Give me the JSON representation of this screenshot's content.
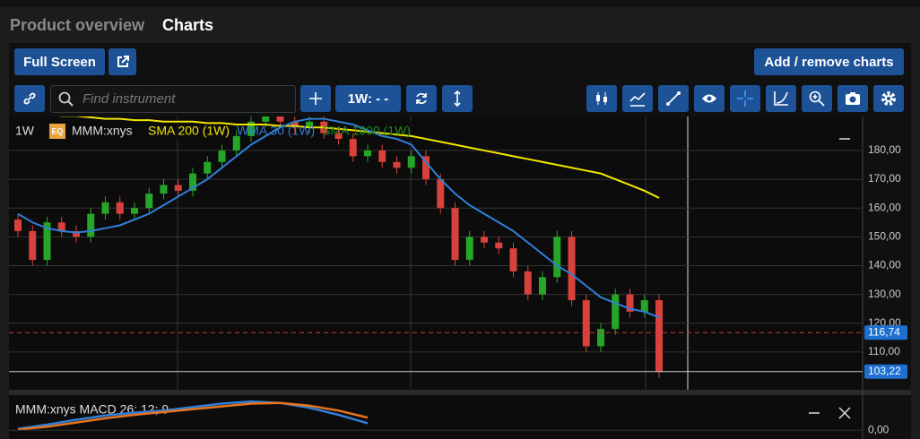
{
  "tabs": [
    "Product overview",
    "Charts"
  ],
  "toolbar": {
    "full_screen": "Full Screen",
    "add_remove": "Add / remove charts",
    "search_placeholder": "Find instrument",
    "interval": "1W: - -"
  },
  "chart_data": {
    "type": "candlestick",
    "interval": "1W",
    "badge": "EQ",
    "symbol": "MMM:xnys",
    "up_color": "#26a626",
    "down_color": "#d9413c",
    "open": [
      156,
      152,
      142,
      155,
      152,
      150,
      158,
      162,
      158,
      160,
      165,
      168,
      166,
      172,
      176,
      180,
      185,
      190,
      192,
      190,
      188,
      190,
      186,
      184,
      178,
      180,
      176,
      174,
      178,
      170,
      160,
      142,
      150,
      148,
      146,
      138,
      130,
      136,
      150,
      128,
      112,
      118,
      130,
      124,
      128
    ],
    "high": [
      158,
      154,
      157,
      157,
      154,
      160,
      164,
      164,
      162,
      167,
      170,
      170,
      174,
      178,
      182,
      187,
      192,
      194,
      194,
      192,
      192,
      192,
      188,
      186,
      182,
      182,
      178,
      180,
      180,
      172,
      162,
      152,
      152,
      150,
      148,
      140,
      138,
      152,
      152,
      130,
      120,
      132,
      132,
      130,
      130
    ],
    "low": [
      150,
      140,
      140,
      150,
      148,
      148,
      156,
      156,
      156,
      158,
      163,
      164,
      164,
      170,
      174,
      178,
      183,
      188,
      188,
      186,
      186,
      184,
      182,
      176,
      176,
      174,
      172,
      172,
      168,
      158,
      140,
      140,
      146,
      144,
      136,
      128,
      128,
      134,
      126,
      110,
      110,
      116,
      122,
      122,
      101
    ],
    "close": [
      152,
      142,
      155,
      152,
      150,
      158,
      162,
      158,
      160,
      165,
      168,
      166,
      172,
      176,
      180,
      185,
      190,
      192,
      190,
      188,
      190,
      186,
      184,
      178,
      180,
      176,
      174,
      178,
      170,
      160,
      142,
      150,
      148,
      146,
      138,
      130,
      136,
      150,
      128,
      112,
      118,
      130,
      124,
      128,
      103.22
    ],
    "overlays": [
      {
        "name": "SMA 200 (1W)",
        "color": "#f2e600",
        "values": [
          193,
          193,
          192.5,
          192,
          192,
          191.5,
          191,
          191,
          190.5,
          190.5,
          190,
          190,
          190,
          189.5,
          189.5,
          189,
          189,
          189,
          188.5,
          188.5,
          188,
          188,
          187.5,
          187,
          186.5,
          186,
          185.5,
          185,
          184,
          183,
          182,
          181,
          180,
          179,
          178,
          177,
          176,
          175,
          174,
          173,
          172,
          170,
          168,
          166,
          163.5
        ]
      },
      {
        "name": "WMA 30 (1W)",
        "color": "#2f7fd8",
        "values": [
          158,
          155,
          153,
          152,
          151.5,
          152,
          153,
          154,
          156,
          158,
          161,
          164,
          167,
          170,
          174,
          178,
          182,
          185,
          188,
          190,
          191,
          191,
          190,
          189,
          187,
          185,
          184,
          182,
          176,
          170,
          165,
          161,
          158,
          155,
          152,
          148,
          144,
          140,
          137,
          133,
          129,
          127,
          125,
          124,
          122
        ]
      },
      {
        "name": "SMA 1000 (1W)",
        "color": "#1e8c1e"
      }
    ],
    "ylim": [
      96.9,
      191.8
    ],
    "yticks": [
      {
        "value": 110,
        "label": "110,00"
      },
      {
        "value": 120,
        "label": "120,00"
      },
      {
        "value": 130,
        "label": "130,00"
      },
      {
        "value": 140,
        "label": "140,00"
      },
      {
        "value": 150,
        "label": "150,00"
      },
      {
        "value": 160,
        "label": "160,00"
      },
      {
        "value": 170,
        "label": "170,00"
      },
      {
        "value": 180,
        "label": "180,00"
      }
    ],
    "grid": true,
    "last_price": {
      "value": 116.74,
      "label": "116,74"
    },
    "current_price": {
      "value": 103.22,
      "label": "103,22"
    },
    "macd": {
      "title": "MMM:xnys MACD 26; 12; 9",
      "ylim": [
        -1.25,
        4.5
      ],
      "yticks": [
        {
          "value": 0,
          "label": "0,00"
        }
      ],
      "x": [
        0,
        2,
        4,
        6,
        8,
        10,
        12,
        14,
        16,
        18,
        20,
        22,
        24
      ],
      "series": [
        {
          "color": "#2f7fd8",
          "values": [
            0.2,
            0.8,
            1.5,
            2.1,
            2.5,
            2.8,
            3.3,
            3.8,
            4.1,
            3.9,
            3.2,
            2.2,
            1.0
          ]
        },
        {
          "color": "#e8731e",
          "values": [
            0.1,
            0.5,
            1.1,
            1.7,
            2.2,
            2.6,
            3.0,
            3.4,
            3.8,
            3.9,
            3.5,
            2.8,
            1.8
          ]
        }
      ]
    }
  }
}
